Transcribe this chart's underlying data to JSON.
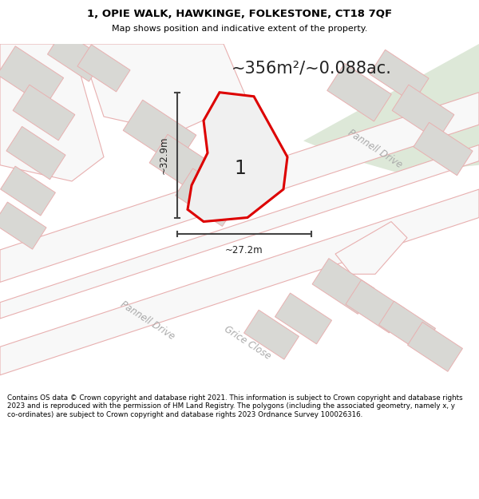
{
  "title_line1": "1, OPIE WALK, HAWKINGE, FOLKESTONE, CT18 7QF",
  "title_line2": "Map shows position and indicative extent of the property.",
  "area_text": "~356m²/~0.088ac.",
  "label_number": "1",
  "dim_horizontal": "~27.2m",
  "dim_vertical": "~32.9m",
  "road_label_pannell_tr": "Pannell Drive",
  "road_label_pannell_bl": "Pannell Drive",
  "road_label_grice": "Grice Close",
  "footer_text": "Contains OS data © Crown copyright and database right 2021. This information is subject to Crown copyright and database rights 2023 and is reproduced with the permission of HM Land Registry. The polygons (including the associated geometry, namely x, y co-ordinates) are subject to Crown copyright and database rights 2023 Ordnance Survey 100026316.",
  "bg_map_color": "#ededea",
  "bg_green_color": "#dde8d8",
  "road_fill_color": "#f8f8f8",
  "road_stroke_color": "#e8b0b0",
  "plot_fill_color": "#f0f0f0",
  "plot_stroke_color": "#dd0000",
  "building_fill_color": "#d8d8d4",
  "building_edge_color": "#e8b0b0",
  "dim_line_color": "#444444",
  "title_color": "#000000",
  "footer_bg": "#ffffff",
  "map_bg_color": "#e8e8e4"
}
